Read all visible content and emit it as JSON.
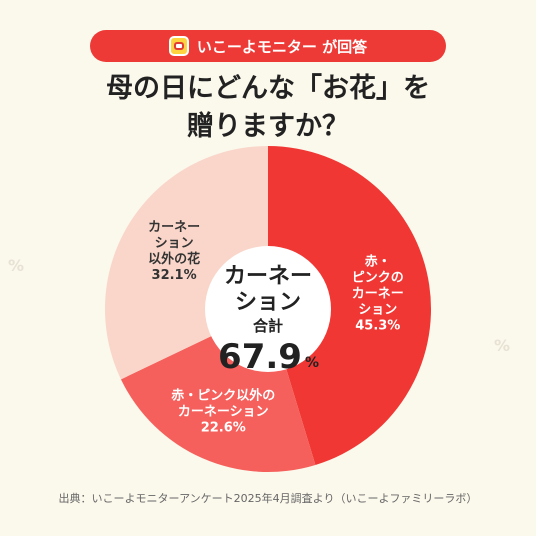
{
  "header": {
    "badge_text": "いこーよモニター が回答"
  },
  "title": {
    "line1": "母の日にどんな「お花」を",
    "line2": "贈りますか？"
  },
  "chart_data": {
    "type": "pie",
    "style": "donut",
    "start_angle_deg": 0,
    "direction": "clockwise",
    "slices": [
      {
        "label_lines": [
          "赤・",
          "ピンクの",
          "カーネー",
          "ション"
        ],
        "value": 45.3,
        "value_text": "45.3%",
        "color": "#f03734",
        "text_color": "#ffffff"
      },
      {
        "label_lines": [
          "赤・ピンク以外の",
          "カーネーション"
        ],
        "value": 22.6,
        "value_text": "22.6%",
        "color": "#f6605c",
        "text_color": "#ffffff"
      },
      {
        "label_lines": [
          "カーネー",
          "ション",
          "以外の花"
        ],
        "value": 32.1,
        "value_text": "32.1%",
        "color": "#f9d6c9",
        "text_color": "#333333"
      }
    ],
    "center": {
      "lines": [
        "カーネー",
        "ション",
        "合計"
      ],
      "value": "67.9",
      "unit": "%"
    }
  },
  "source": "出典：いこーよモニターアンケート2025年4月調査より（いこーよファミリーラボ）",
  "decor": {
    "percent_glyph": "%"
  }
}
